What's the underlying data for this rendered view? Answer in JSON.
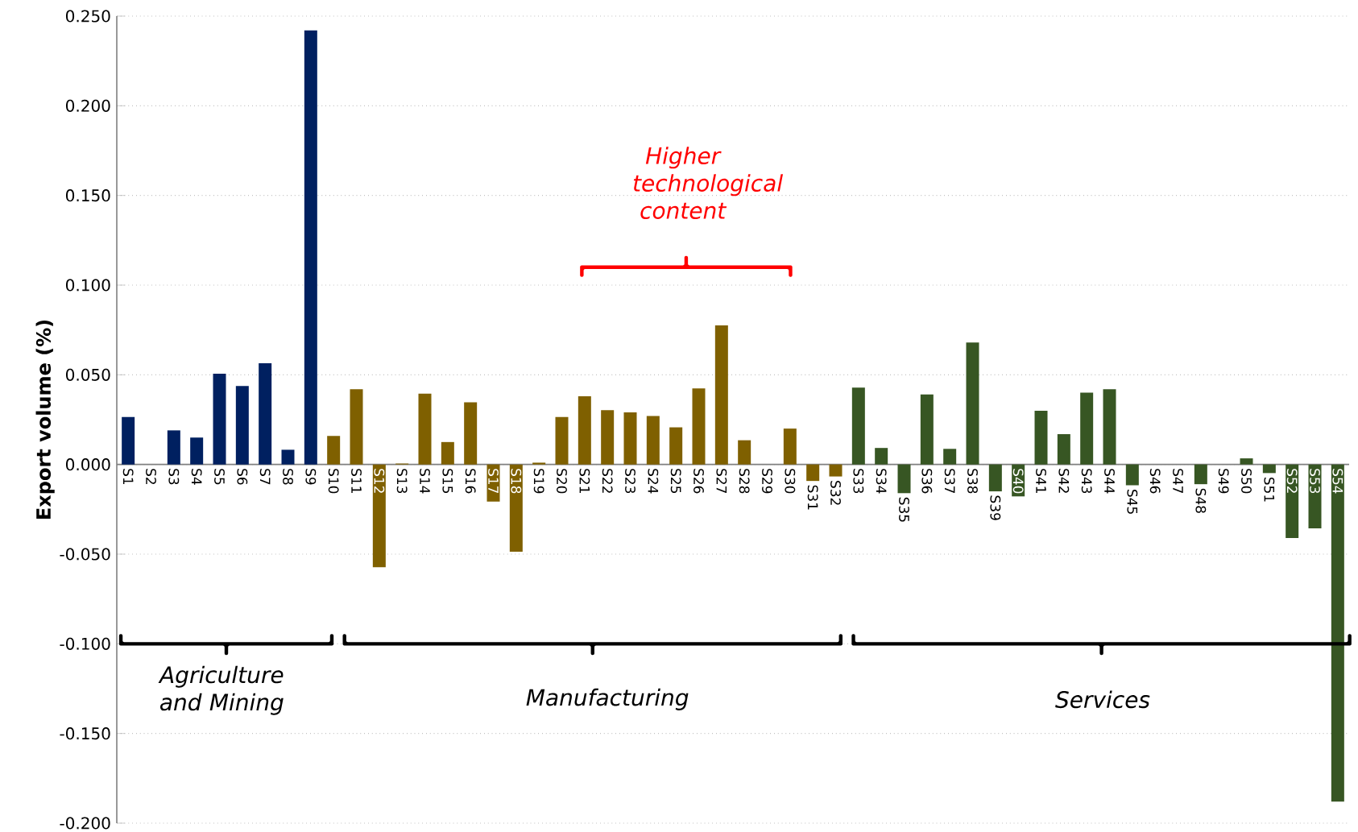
{
  "chart_data": {
    "type": "bar",
    "ylabel": "Export volume (%)",
    "categories": [
      "S1",
      "S2",
      "S3",
      "S4",
      "S5",
      "S6",
      "S7",
      "S8",
      "S9",
      "S10",
      "S11",
      "S12",
      "S13",
      "S14",
      "S15",
      "S16",
      "S17",
      "S18",
      "S19",
      "S20",
      "S21",
      "S22",
      "S23",
      "S24",
      "S25",
      "S26",
      "S27",
      "S28",
      "S29",
      "S30",
      "S31",
      "S32",
      "S33",
      "S34",
      "S35",
      "S36",
      "S37",
      "S38",
      "S39",
      "S40",
      "S41",
      "S42",
      "S43",
      "S44",
      "S45",
      "S46",
      "S47",
      "S48",
      "S49",
      "S50",
      "S51",
      "S52",
      "S53",
      "S54"
    ],
    "values": [
      0.0265,
      0,
      0.019,
      0.015,
      0.0506,
      0.0438,
      0.0564,
      0.0082,
      0.242,
      0.0159,
      0.042,
      -0.0573,
      0.0005,
      0.0395,
      0.0125,
      0.0347,
      -0.0207,
      -0.0487,
      0.001,
      0.0265,
      0.038,
      0.0303,
      0.029,
      0.027,
      0.0207,
      0.0424,
      0.0776,
      0.0135,
      0,
      0.02,
      -0.0092,
      -0.0067,
      0.0429,
      0.0092,
      -0.016,
      0.039,
      0.0087,
      0.068,
      -0.015,
      -0.0178,
      0.0299,
      0.0169,
      0.04,
      0.042,
      -0.0116,
      0,
      0,
      -0.011,
      0,
      0.0034,
      -0.0048,
      -0.041,
      -0.0356,
      -0.188
    ],
    "colors": [
      "#002060",
      "#002060",
      "#002060",
      "#002060",
      "#002060",
      "#002060",
      "#002060",
      "#002060",
      "#002060",
      "#7f6000",
      "#7f6000",
      "#7f6000",
      "#7f6000",
      "#7f6000",
      "#7f6000",
      "#7f6000",
      "#7f6000",
      "#7f6000",
      "#7f6000",
      "#7f6000",
      "#7f6000",
      "#7f6000",
      "#7f6000",
      "#7f6000",
      "#7f6000",
      "#7f6000",
      "#7f6000",
      "#7f6000",
      "#7f6000",
      "#7f6000",
      "#7f6000",
      "#7f6000",
      "#375623",
      "#375623",
      "#375623",
      "#375623",
      "#375623",
      "#375623",
      "#375623",
      "#375623",
      "#375623",
      "#375623",
      "#375623",
      "#375623",
      "#375623",
      "#375623",
      "#375623",
      "#375623",
      "#375623",
      "#375623",
      "#375623",
      "#375623",
      "#375623",
      "#375623"
    ],
    "ylim": [
      -0.2,
      0.25
    ],
    "yticks": [
      {
        "value": -0.2,
        "label": "-0.200"
      },
      {
        "value": -0.15,
        "label": "-0.150"
      },
      {
        "value": -0.1,
        "label": "-0.100"
      },
      {
        "value": -0.05,
        "label": "-0.050"
      },
      {
        "value": 0,
        "label": "0.000"
      },
      {
        "value": 0.05,
        "label": "0.050"
      },
      {
        "value": 0.1,
        "label": "0.100"
      },
      {
        "value": 0.15,
        "label": "0.150"
      },
      {
        "value": 0.2,
        "label": "0.200"
      },
      {
        "value": 0.25,
        "label": "0.250"
      }
    ],
    "grid": "y",
    "annotations": [
      "Higher technological content",
      "Agriculture and Mining",
      "Manufacturing",
      "Services"
    ]
  }
}
